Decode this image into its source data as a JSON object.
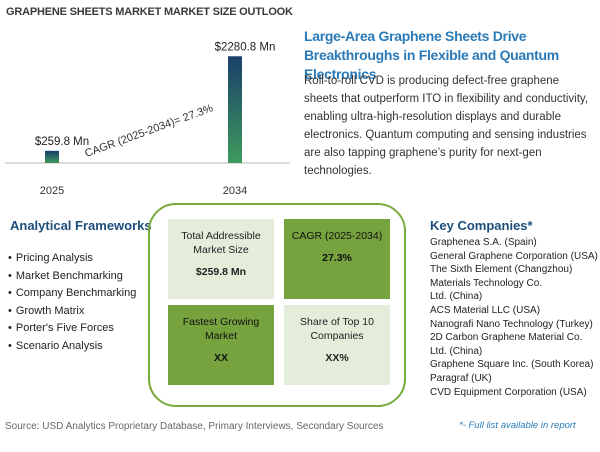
{
  "page_title": "GRAPHENE SHEETS MARKET MARKET SIZE OUTLOOK",
  "chart_data": {
    "type": "bar",
    "categories": [
      "2025",
      "2034"
    ],
    "values": [
      259.8,
      2280.8
    ],
    "value_labels": [
      "$259.8 Mn",
      "$2280.8 Mn"
    ],
    "cagr_label": "CAGR (2025-2034)=   27.3%",
    "title": "",
    "xlabel": "",
    "ylabel": "",
    "ylim": [
      0,
      2500
    ],
    "grid": false,
    "colors": {
      "bar_top": "#1a3f6a",
      "bar_bottom": "#3f9b5e"
    }
  },
  "headline": "Large-Area Graphene Sheets Drive Breakthroughs in Flexible and Quantum Electronics",
  "description": "Roll-to-roll CVD is producing defect-free graphene sheets that outperform ITO in flexibility and conductivity, enabling ultra-high-resolution displays and durable electronics. Quantum computing and sensing industries are also tapping graphene’s purity for next-gen technologies.",
  "frameworks": {
    "title": "Analytical Frameworks",
    "items": [
      "Pricing Analysis",
      "Market Benchmarking",
      "Company Benchmarking",
      "Growth Matrix",
      "Porter's Five Forces",
      "Scenario Analysis"
    ]
  },
  "cards": {
    "tam": {
      "label": "Total Addressible Market Size",
      "value": "$259.8 Mn"
    },
    "cagr": {
      "label": "CAGR (2025-2034)",
      "value": "27.3%"
    },
    "fastest": {
      "label": "Fastest Growing Market",
      "value": "XX"
    },
    "share": {
      "label": "Share of Top 10 Companies",
      "value": "XX%"
    }
  },
  "companies": {
    "title": "Key Companies*",
    "items": [
      "Graphenea S.A. (Spain)",
      "General Graphene Corporation (USA)",
      "The Sixth Element (Changzhou) Materials Technology Co.",
      "Ltd. (China)",
      "ACS Material LLC (USA)",
      "Nanografi Nano Technology (Turkey)",
      "2D Carbon Graphene Material Co. Ltd. (China)",
      "Graphene Square Inc. (South Korea)",
      "Paragraf (UK)",
      "CVD Equipment Corporation (USA)"
    ],
    "note": "*- Full list available in report"
  },
  "source": "Source: USD Analytics Proprietary Database, Primary Interviews, Secondary Sources"
}
